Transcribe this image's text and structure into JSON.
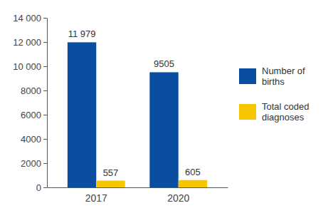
{
  "chart_data": {
    "type": "bar",
    "categories": [
      "2017",
      "2020"
    ],
    "series": [
      {
        "name": "Number of births",
        "color": "#0a4ea2",
        "values": [
          11979,
          9505
        ],
        "value_labels": [
          "11 979",
          "9505"
        ]
      },
      {
        "name": "Total coded diagnoses",
        "color": "#f7c600",
        "values": [
          557,
          605
        ],
        "value_labels": [
          "557",
          "605"
        ]
      }
    ],
    "ylim": [
      0,
      14000
    ],
    "yticks": [
      0,
      2000,
      4000,
      6000,
      8000,
      {
        "value": 10000,
        "label": "10 000"
      },
      {
        "value": 12000,
        "label": "12 000"
      },
      {
        "value": 14000,
        "label": "14 000"
      }
    ],
    "grid": false,
    "legend": "right",
    "data_labels": true
  }
}
